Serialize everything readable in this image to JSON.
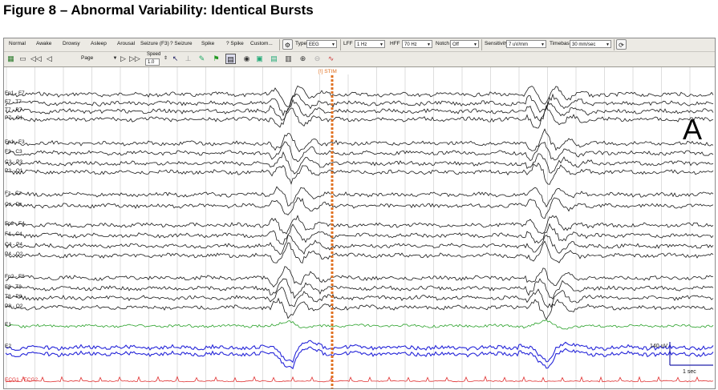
{
  "figure_title": "Figure 8 – Abnormal Variability: Identical Bursts",
  "panel_letter": "A",
  "toolbar": {
    "events": [
      "Normal",
      "Awake",
      "Drowsy",
      "Asleep",
      "Arousal",
      "Seizure (F3)",
      "? Seizure",
      "Spike",
      "? Spike",
      "Custom..."
    ],
    "type_label": "Type",
    "type_value": "EEG",
    "lff_label": "LFF",
    "lff_value": "1 Hz",
    "hff_label": "HFF",
    "hff_value": "70 Hz",
    "notch_label": "Notch",
    "notch_value": "Off",
    "sensitivity_label": "Sensitivity",
    "sensitivity_value": "7 uV/mm",
    "timebase_label": "Timebase",
    "timebase_value": "30 mm/sec",
    "page_label": "Page",
    "speed_label": "Speed",
    "speed_value": "1.0"
  },
  "marker_label": "[!] STIM",
  "channels": [
    "Fp1 - F7",
    "F7 - T7",
    "T7 - P7",
    "P7 - O1",
    "Fp1 - F3",
    "F3 - C3",
    "C3 - P3",
    "P3 - O1",
    "Fz - Cz",
    "Cz - Pz",
    "Fp2 - F4",
    "F4 - C4",
    "C4 - P4",
    "P4 - O2",
    "Fp2 - F8",
    "F8 - T8",
    "T8 - P8",
    "P8 - O2",
    "E1",
    "E2",
    "ECG1 - ECG2"
  ],
  "scale": {
    "amplitude_label": "140 uV",
    "time_label": "1 sec"
  },
  "colors": {
    "eeg": "#1a1a1a",
    "eog_green": "#2aa12a",
    "eog_blue": "#2626d9",
    "ecg": "#e03030",
    "stim": "#e07020",
    "grid": "#c8c8c8"
  }
}
